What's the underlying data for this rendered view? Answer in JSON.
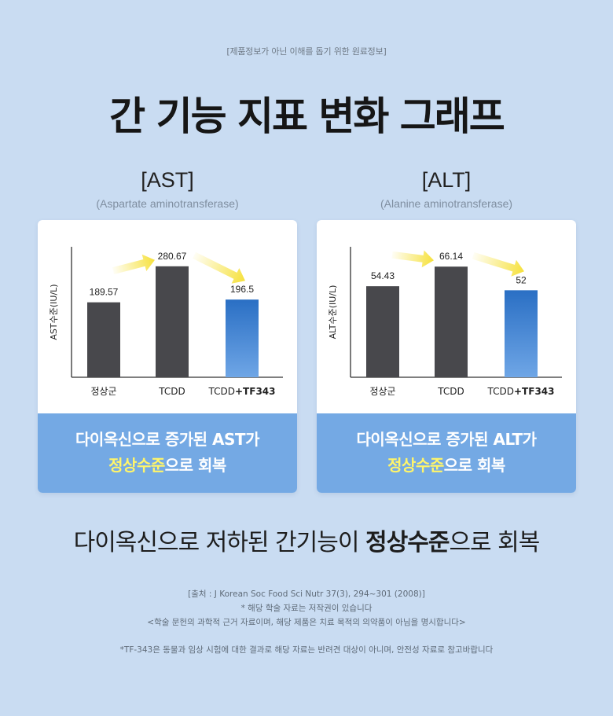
{
  "top_note": "[제품정보가 아닌 이해를 돕기 위한 원료정보]",
  "title": "간 기능 지표 변화 그래프",
  "colors": {
    "background": "#c9dcf2",
    "bar_dark": "#48484c",
    "bar_blue_top": "#2a6fc4",
    "bar_blue_bottom": "#6fa6e6",
    "band": "#74a9e4",
    "highlight": "#fff56a",
    "arrow": "#f6e13c"
  },
  "chart_data": [
    {
      "type": "bar",
      "title": "[AST]",
      "subtitle": "(Aspartate aminotransferase)",
      "ylabel": "AST수준(IU/L)",
      "xlabel": "",
      "categories": [
        "정상군",
        "TCDD",
        "TCDD+TF343"
      ],
      "category_parts": [
        [
          "정상군",
          ""
        ],
        [
          "TCDD",
          ""
        ],
        [
          "TCDD",
          "+TF343"
        ]
      ],
      "values": [
        189.57,
        280.67,
        196.5
      ],
      "labels": [
        "189.57",
        "280.67",
        "196.5"
      ],
      "ylim": [
        0,
        330
      ],
      "grid": false,
      "band_line1": "다이옥신으로 증가된 AST가",
      "band_line2_highlight": "정상수준",
      "band_line2_rest": "으로 회복"
    },
    {
      "type": "bar",
      "title": "[ALT]",
      "subtitle": "(Alanine aminotransferase)",
      "ylabel": "ALT수준(IU/L)",
      "xlabel": "",
      "categories": [
        "정상군",
        "TCDD",
        "TCDD+TF343"
      ],
      "category_parts": [
        [
          "정상군",
          ""
        ],
        [
          "TCDD",
          ""
        ],
        [
          "TCDD",
          "+TF343"
        ]
      ],
      "values": [
        54.43,
        66.14,
        52
      ],
      "labels": [
        "54.43",
        "66.14",
        "52"
      ],
      "ylim": [
        0,
        78
      ],
      "grid": false,
      "band_line1": "다이옥신으로 증가된 ALT가",
      "band_line2_highlight": "정상수준",
      "band_line2_rest": "으로 회복"
    }
  ],
  "summary": {
    "prefix": "다이옥신으로 저하된 간기능이 ",
    "bold": "정상수준",
    "suffix": "으로 회복"
  },
  "source_lines": [
    "[출처 : J Korean Soc Food Sci Nutr 37(3), 294~301 (2008)]",
    "* 해당 학술 자료는 저작권이 있습니다",
    "<학술 문헌의 과학적 근거 자료이며, 해당 제품은 치료 목적의 의약품이 아님을 명시합니다>"
  ],
  "footnote": "*TF-343은 동물과 임상 시험에 대한 결과로 해당 자료는 반려견 대상이 아니며, 안전성 자료로 참고바랍니다"
}
